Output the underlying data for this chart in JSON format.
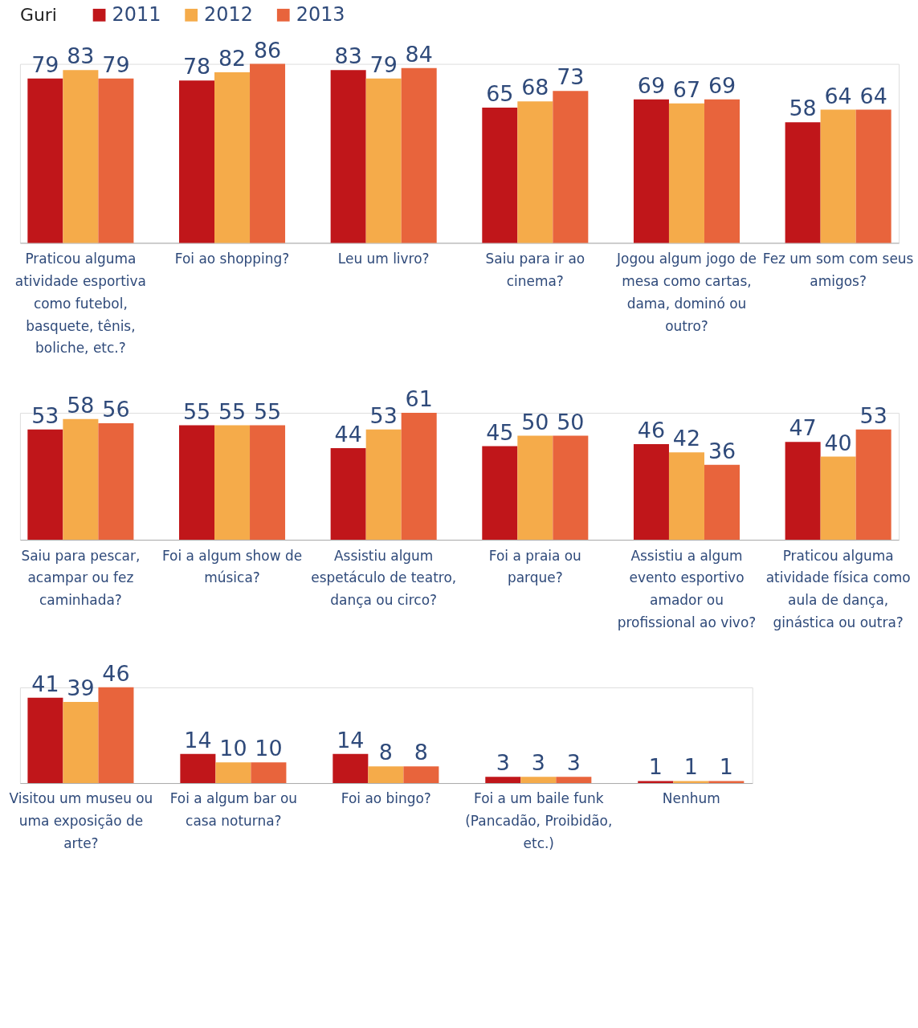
{
  "chart_data": [
    {
      "type": "bar",
      "legend_title": "Guri",
      "legend": "top",
      "data_labels": true,
      "categories": [
        "Praticou alguma atividade esportiva como futebol, basquete, tênis, boliche, etc.?",
        "Foi ao shopping?",
        "Leu um livro?",
        "Saiu para ir ao cinema?",
        "Jogou algum jogo de mesa como cartas, dama, dominó ou outro?",
        "Fez um som com seus amigos?"
      ],
      "series": [
        {
          "name": "2011",
          "color": "#c0161a",
          "values": [
            79,
            78,
            83,
            65,
            69,
            58
          ]
        },
        {
          "name": "2012",
          "color": "#f5ab4a",
          "values": [
            83,
            82,
            79,
            68,
            67,
            64
          ]
        },
        {
          "name": "2013",
          "color": "#e8643c",
          "values": [
            79,
            86,
            84,
            73,
            69,
            64
          ]
        }
      ]
    },
    {
      "type": "bar",
      "legend": false,
      "data_labels": true,
      "categories": [
        "Saiu para pescar, acampar ou fez caminhada?",
        "Foi a algum show de música?",
        "Assistiu algum espetáculo de teatro, dança ou circo?",
        "Foi a praia ou parque?",
        "Assistiu a algum evento esportivo amador ou profissional ao vivo?",
        "Praticou alguma atividade física como aula de dança, ginástica ou outra?"
      ],
      "series": [
        {
          "name": "2011",
          "color": "#c0161a",
          "values": [
            53,
            55,
            44,
            45,
            46,
            47
          ]
        },
        {
          "name": "2012",
          "color": "#f5ab4a",
          "values": [
            58,
            55,
            53,
            50,
            42,
            40
          ]
        },
        {
          "name": "2013",
          "color": "#e8643c",
          "values": [
            56,
            55,
            61,
            50,
            36,
            53
          ]
        }
      ]
    },
    {
      "type": "bar",
      "legend": false,
      "data_labels": true,
      "categories": [
        "Visitou um museu ou uma exposição de arte?",
        "Foi a algum bar ou casa noturna?",
        "Foi ao bingo?",
        "Foi a um baile funk (Pancadão, Proibidão, etc.)",
        "Nenhum"
      ],
      "series": [
        {
          "name": "2011",
          "color": "#c0161a",
          "values": [
            41,
            14,
            14,
            3,
            1
          ]
        },
        {
          "name": "2012",
          "color": "#f5ab4a",
          "values": [
            39,
            10,
            8,
            3,
            1
          ]
        },
        {
          "name": "2013",
          "color": "#e8643c",
          "values": [
            46,
            10,
            8,
            3,
            1
          ]
        }
      ]
    }
  ]
}
